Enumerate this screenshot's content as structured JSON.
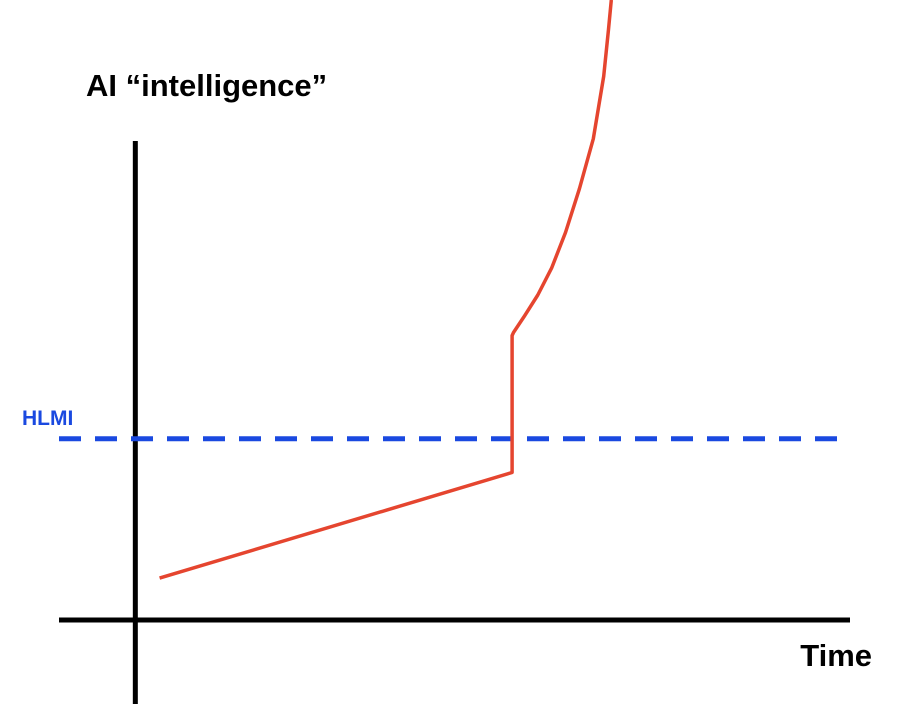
{
  "chart_data": {
    "type": "line",
    "ylabel": "AI “intelligence”",
    "xlabel": "Time",
    "reference_line": {
      "label": "HLMI",
      "value": 2.9,
      "style": "dashed",
      "color": "#1a49e0"
    },
    "series": [
      {
        "color": "#e5452f",
        "x": [
          0.35,
          5.43,
          5.43,
          5.45,
          5.6,
          5.8,
          6.0,
          6.2,
          6.4,
          6.6,
          6.75,
          6.82,
          6.86
        ],
        "y": [
          0.67,
          2.36,
          4.55,
          4.6,
          4.85,
          5.2,
          5.63,
          6.2,
          6.9,
          7.7,
          8.7,
          9.45,
          9.92
        ]
      }
    ],
    "xlim": [
      -1.1,
      10.3
    ],
    "ylim": [
      0,
      9.92
    ],
    "axis_color": "#000000",
    "grid": false,
    "legend": "none"
  }
}
